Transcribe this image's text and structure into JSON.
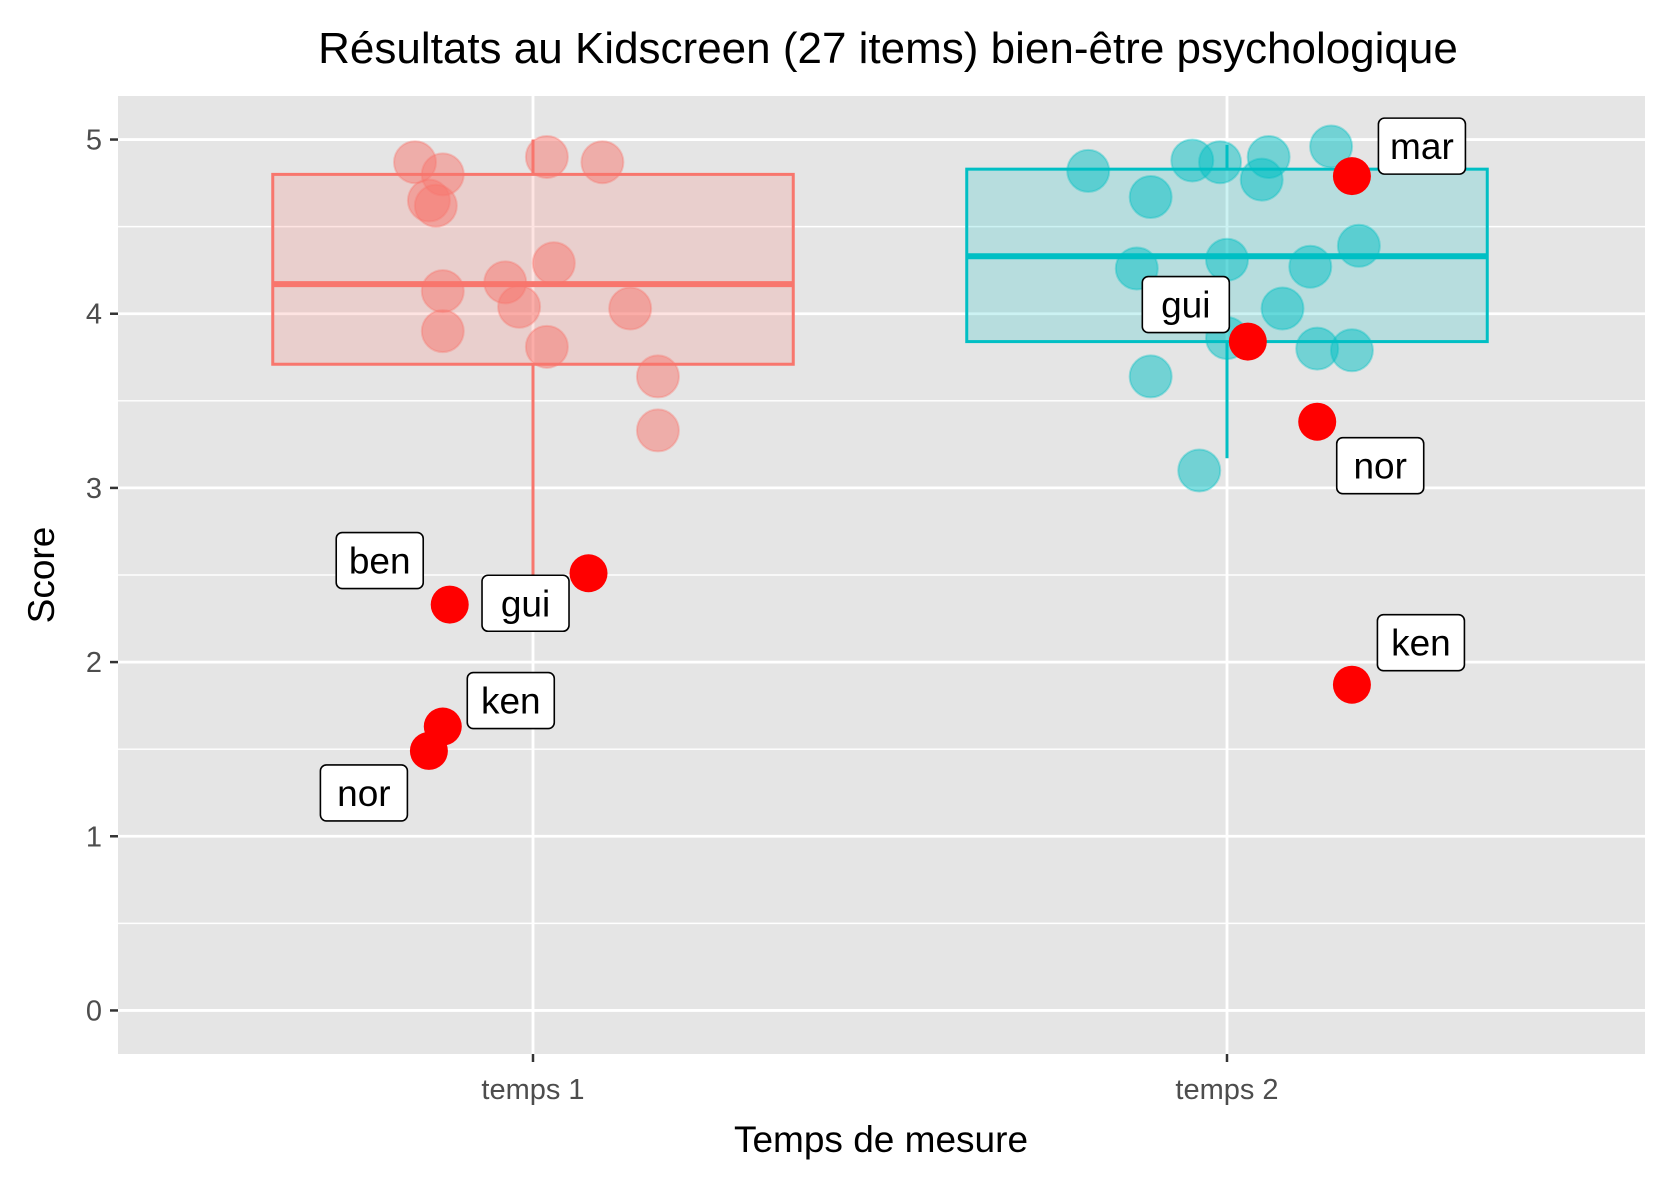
{
  "chart_data": {
    "type": "boxplot",
    "title": "Résultats au Kidscreen (27 items) bien-être psychologique",
    "xlabel": "Temps de mesure",
    "ylabel": "Score",
    "ylim": [
      -0.25,
      5.25
    ],
    "y_ticks": [
      0,
      1,
      2,
      3,
      4,
      5
    ],
    "categories": [
      "temps 1",
      "temps 2"
    ],
    "background": "#e5e5e5",
    "grid": true,
    "series": [
      {
        "category": "temps 1",
        "color": "#f8766d",
        "box": {
          "lower_whisker": 2.5,
          "q1": 3.71,
          "median": 4.17,
          "q3": 4.8,
          "upper_whisker": 5.0
        },
        "points": [
          {
            "dx": -0.17,
            "y": 4.87
          },
          {
            "dx": -0.13,
            "y": 4.8
          },
          {
            "dx": -0.15,
            "y": 4.65
          },
          {
            "dx": -0.14,
            "y": 4.62
          },
          {
            "dx": 0.02,
            "y": 4.9
          },
          {
            "dx": 0.1,
            "y": 4.87
          },
          {
            "dx": -0.13,
            "y": 4.13
          },
          {
            "dx": -0.04,
            "y": 4.18
          },
          {
            "dx": 0.03,
            "y": 4.29
          },
          {
            "dx": -0.02,
            "y": 4.04
          },
          {
            "dx": 0.14,
            "y": 4.03
          },
          {
            "dx": -0.13,
            "y": 3.9
          },
          {
            "dx": 0.02,
            "y": 3.81
          },
          {
            "dx": 0.18,
            "y": 3.64
          },
          {
            "dx": 0.18,
            "y": 3.33
          }
        ],
        "highlighted": [
          {
            "label": "ben",
            "dx": -0.12,
            "y": 2.33
          },
          {
            "label": "gui",
            "dx": 0.08,
            "y": 2.51
          },
          {
            "label": "ken",
            "dx": -0.13,
            "y": 1.63
          },
          {
            "label": "nor",
            "dx": -0.15,
            "y": 1.49
          }
        ]
      },
      {
        "category": "temps 2",
        "color": "#00bfc4",
        "box": {
          "lower_whisker": 3.17,
          "q1": 3.84,
          "median": 4.33,
          "q3": 4.83,
          "upper_whisker": 4.97
        },
        "points": [
          {
            "dx": -0.2,
            "y": 4.82
          },
          {
            "dx": -0.05,
            "y": 4.88
          },
          {
            "dx": -0.01,
            "y": 4.87
          },
          {
            "dx": 0.06,
            "y": 4.9
          },
          {
            "dx": 0.05,
            "y": 4.77
          },
          {
            "dx": 0.15,
            "y": 4.96
          },
          {
            "dx": -0.11,
            "y": 4.67
          },
          {
            "dx": 0.19,
            "y": 4.39
          },
          {
            "dx": -0.13,
            "y": 4.26
          },
          {
            "dx": 0.0,
            "y": 4.31
          },
          {
            "dx": 0.12,
            "y": 4.27
          },
          {
            "dx": 0.08,
            "y": 4.03
          },
          {
            "dx": 0.0,
            "y": 3.86
          },
          {
            "dx": 0.13,
            "y": 3.8
          },
          {
            "dx": 0.18,
            "y": 3.79
          },
          {
            "dx": -0.11,
            "y": 3.64
          },
          {
            "dx": -0.04,
            "y": 3.1
          }
        ],
        "highlighted": [
          {
            "label": "mar",
            "dx": 0.18,
            "y": 4.79
          },
          {
            "label": "gui",
            "dx": 0.03,
            "y": 3.84
          },
          {
            "label": "nor",
            "dx": 0.13,
            "y": 3.38
          },
          {
            "label": "ken",
            "dx": 0.18,
            "y": 1.87
          }
        ]
      }
    ],
    "highlight_color": "#ff0000"
  }
}
